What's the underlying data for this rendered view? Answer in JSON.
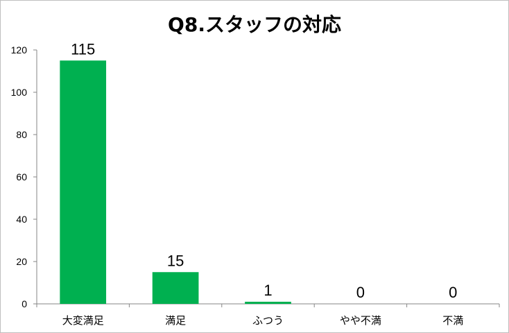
{
  "chart_data": {
    "type": "bar",
    "title": "Q8.スタッフの対応",
    "categories": [
      "大変満足",
      "満足",
      "ふつう",
      "やや不満",
      "不満"
    ],
    "values": [
      115,
      15,
      1,
      0,
      0
    ],
    "ylim": [
      0,
      120
    ],
    "yticks": [
      0,
      20,
      40,
      60,
      80,
      100,
      120
    ],
    "grid": false,
    "legend": "none",
    "bar_color": "#00b050"
  }
}
